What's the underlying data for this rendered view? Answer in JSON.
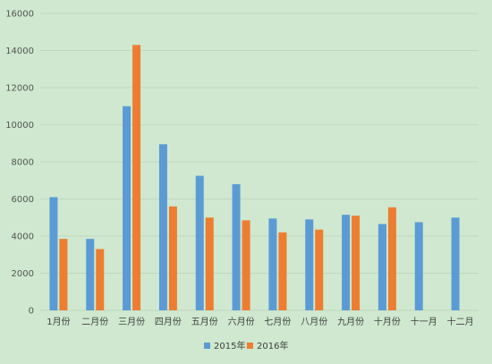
{
  "chart_data": {
    "type": "bar",
    "categories": [
      "1月份",
      "二月份",
      "三月份",
      "四月份",
      "五月份",
      "六月份",
      "七月份",
      "八月份",
      "九月份",
      "十月份",
      "十一月",
      "十二月"
    ],
    "series": [
      {
        "name": "2015年",
        "color": "#5b9bd5",
        "values": [
          6100,
          3850,
          11000,
          8950,
          7250,
          6800,
          4950,
          4900,
          5150,
          4650,
          4750,
          5000
        ]
      },
      {
        "name": "2016年",
        "color": "#ed7d31",
        "values": [
          3850,
          3300,
          14300,
          5600,
          5000,
          4850,
          4200,
          4350,
          5100,
          5550,
          null,
          null
        ]
      }
    ],
    "yticks": [
      0,
      2000,
      4000,
      6000,
      8000,
      10000,
      12000,
      14000,
      16000
    ],
    "ylim": [
      0,
      16000
    ],
    "grid": true,
    "legend_position": "bottom",
    "title": "",
    "xlabel": "",
    "ylabel": ""
  }
}
